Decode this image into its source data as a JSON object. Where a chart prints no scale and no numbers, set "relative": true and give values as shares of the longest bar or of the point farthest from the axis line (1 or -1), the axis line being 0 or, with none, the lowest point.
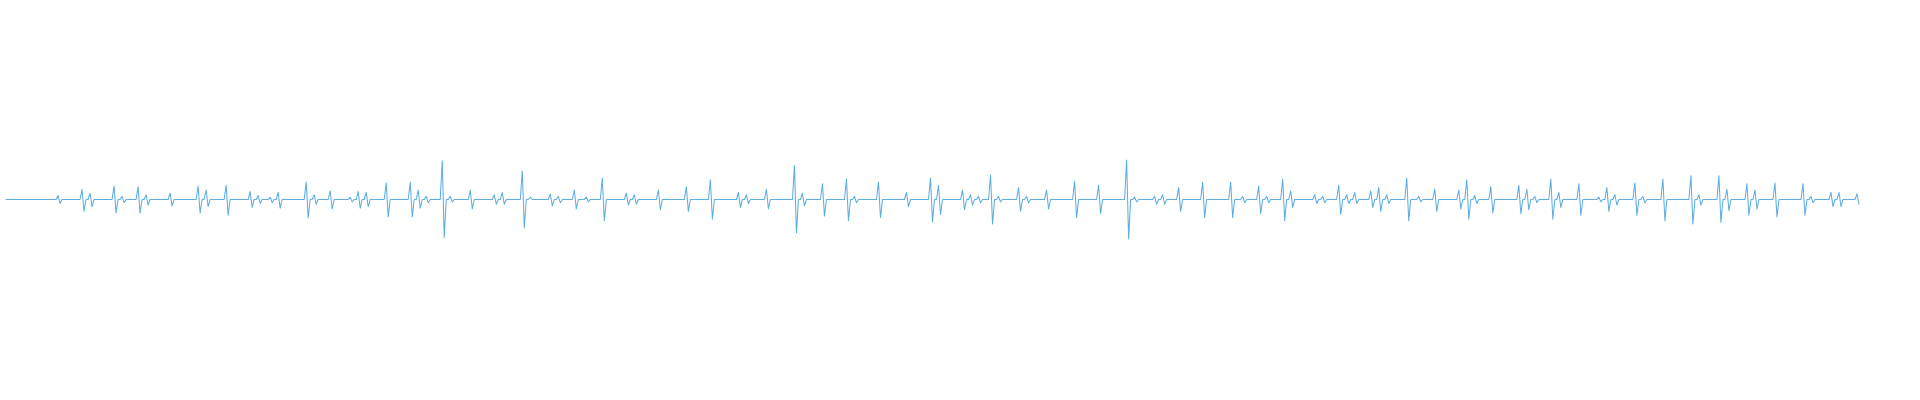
{
  "chart_data": {
    "type": "line",
    "relative": true,
    "categories": [
      null,
      null,
      null,
      null,
      null,
      null,
      null,
      null,
      null,
      null,
      null,
      null,
      null,
      null,
      null,
      null,
      null,
      null,
      null,
      null,
      null,
      null,
      null,
      null,
      null,
      null,
      null,
      null,
      null,
      null,
      null,
      null,
      null,
      null,
      null,
      null,
      null,
      null,
      null,
      null,
      null,
      null,
      null,
      null,
      null,
      null,
      null,
      null,
      null,
      null,
      null,
      null,
      null,
      null,
      null,
      null,
      null,
      null,
      null,
      null,
      null,
      null,
      null,
      null,
      null,
      null,
      null,
      null,
      null,
      null,
      null,
      null,
      null,
      null,
      null,
      null,
      null,
      null,
      null,
      null,
      null,
      null,
      null,
      null,
      null,
      null,
      null,
      null,
      null,
      null,
      null,
      null,
      null,
      null,
      null,
      null,
      null,
      null,
      null,
      null,
      null,
      null,
      null,
      null,
      null,
      null,
      null,
      null,
      null,
      null,
      null,
      null,
      null,
      null,
      null,
      null,
      null,
      null,
      null,
      null,
      null,
      null,
      null,
      null,
      null,
      null,
      null,
      null,
      null,
      null,
      null,
      null,
      null,
      null,
      null,
      null,
      null,
      null,
      null,
      null,
      null,
      null,
      null,
      null,
      null,
      null,
      null,
      null,
      null,
      null,
      null,
      null,
      null,
      null,
      null,
      null,
      null,
      null,
      null,
      null,
      null,
      null,
      null,
      null,
      null,
      null,
      null,
      null,
      null,
      null,
      null,
      null,
      null,
      null,
      null,
      null,
      null,
      null,
      null,
      null,
      null,
      null,
      null,
      null,
      null,
      null,
      null,
      null,
      null,
      null,
      null,
      null,
      null,
      null,
      null,
      null,
      null,
      null,
      null,
      null,
      null,
      null,
      null,
      null,
      null,
      null,
      null,
      null,
      null,
      null,
      null,
      null,
      null,
      null,
      null,
      null,
      null,
      null,
      null,
      null,
      null,
      null,
      null,
      null,
      null,
      null,
      null,
      null,
      null,
      null,
      null,
      null,
      null,
      null,
      null,
      null,
      null,
      null,
      null,
      null,
      null,
      null,
      null,
      null,
      null,
      null,
      null,
      null,
      null,
      null,
      null,
      null,
      null,
      null,
      null,
      null,
      null,
      null,
      null,
      null,
      null,
      null,
      null,
      null,
      null,
      null,
      null,
      null,
      null,
      null,
      null,
      null,
      null,
      null,
      null,
      null,
      null,
      null,
      null,
      null,
      null,
      null,
      null,
      null,
      null,
      null,
      null,
      null,
      null,
      null,
      null,
      null,
      null,
      null,
      null,
      null,
      null,
      null,
      null,
      null,
      null,
      null,
      null,
      null,
      null,
      null,
      null,
      null,
      null,
      null,
      null,
      null,
      null,
      null,
      null,
      null,
      null,
      null,
      null,
      null,
      null,
      null,
      null,
      null,
      null,
      null,
      null,
      null,
      null,
      null,
      null,
      null,
      null,
      null,
      null,
      null,
      null,
      null,
      null,
      null,
      null,
      null,
      null,
      null,
      null,
      null,
      null,
      null,
      null,
      null,
      null,
      null,
      null,
      null,
      null,
      null,
      null,
      null,
      null,
      null,
      null,
      null,
      null,
      null,
      null,
      null,
      null,
      null,
      null,
      null,
      null,
      null,
      null,
      null,
      null,
      null,
      null,
      null,
      null,
      null,
      null,
      null,
      null,
      null,
      null,
      null,
      null,
      null,
      null,
      null,
      null,
      null,
      null,
      null,
      null,
      null,
      null,
      null,
      null,
      null,
      null,
      null,
      null,
      null,
      null,
      null,
      null,
      null,
      null,
      null,
      null,
      null,
      null,
      null,
      null,
      null,
      null,
      null,
      null,
      null,
      null,
      null,
      null,
      null,
      null,
      null,
      null,
      null,
      null,
      null,
      null,
      null,
      null,
      null,
      null,
      null,
      null,
      null,
      null,
      null,
      null,
      null,
      null,
      null,
      null,
      null,
      null,
      null,
      null,
      null,
      null,
      null,
      null,
      null,
      null,
      null,
      null,
      null,
      null,
      null,
      null,
      null,
      null,
      null,
      null,
      null,
      null,
      null,
      null,
      null,
      null,
      null,
      null,
      null,
      null,
      null,
      null,
      null,
      null,
      null,
      null,
      null,
      null,
      null,
      null,
      null,
      null,
      null,
      null,
      null,
      null,
      null,
      null,
      null,
      null,
      null,
      null,
      null,
      null,
      null,
      null,
      null,
      null,
      null,
      null,
      null,
      null,
      null,
      null,
      null,
      null,
      null,
      null,
      null,
      null,
      null,
      null,
      null,
      null,
      null,
      null,
      null,
      null,
      null,
      null,
      null,
      null,
      null,
      null,
      null,
      null,
      null,
      null,
      null,
      null,
      null,
      null,
      null,
      null,
      null,
      null,
      null,
      null,
      null,
      null,
      null,
      null,
      null,
      null,
      null,
      null,
      null,
      null,
      null,
      null,
      null,
      null,
      null,
      null,
      null,
      null,
      null,
      null,
      null,
      null,
      null,
      null,
      null,
      null,
      null,
      null,
      null,
      null,
      null,
      null,
      null,
      null,
      null,
      null,
      null,
      null,
      null,
      null,
      null,
      null,
      null,
      null,
      null,
      null,
      null,
      null,
      null,
      null,
      null,
      null,
      null,
      null,
      null,
      null,
      null,
      null,
      null,
      null,
      null,
      null,
      null,
      null,
      null,
      null,
      null,
      null,
      null,
      null,
      null,
      null,
      null,
      null,
      null,
      null,
      null,
      null,
      null,
      null,
      null,
      null,
      null,
      null,
      null,
      null,
      null,
      null,
      null,
      null,
      null,
      null,
      null,
      null,
      null,
      null,
      null,
      null,
      null,
      null,
      null,
      null,
      null,
      null,
      null,
      null,
      null,
      null,
      null,
      null,
      null,
      null,
      null,
      null,
      null,
      null,
      null,
      null,
      null,
      null,
      null,
      null,
      null,
      null,
      null,
      null,
      null,
      null,
      null,
      null,
      null,
      null,
      null,
      null,
      null,
      null,
      null,
      null,
      null,
      null,
      null,
      null,
      null,
      null,
      null,
      null,
      null,
      null,
      null,
      null,
      null,
      null,
      null,
      null,
      null,
      null,
      null,
      null,
      null,
      null,
      null,
      null,
      null,
      null,
      null,
      null,
      null,
      null,
      null,
      null,
      null,
      null,
      null,
      null,
      null,
      null,
      null,
      null,
      null,
      null,
      null,
      null,
      null,
      null,
      null,
      null,
      null,
      null,
      null,
      null,
      null,
      null,
      null,
      null,
      null,
      null,
      null,
      null,
      null,
      null,
      null,
      null,
      null,
      null,
      null,
      null,
      null,
      null,
      null,
      null,
      null,
      null,
      null,
      null,
      null,
      null,
      null,
      null,
      null,
      null,
      null,
      null,
      null,
      null,
      null,
      null,
      null,
      null,
      null,
      null,
      null,
      null,
      null,
      null,
      null,
      null,
      null,
      null,
      null,
      null,
      null,
      null,
      null,
      null,
      null,
      null,
      null,
      null,
      null,
      null,
      null,
      null,
      null,
      null,
      null,
      null,
      null,
      null,
      null,
      null,
      null,
      null,
      null,
      null,
      null,
      null,
      null,
      null,
      null,
      null,
      null,
      null,
      null,
      null,
      null,
      null,
      null,
      null,
      null,
      null,
      null,
      null,
      null,
      null,
      null,
      null,
      null,
      null,
      null,
      null,
      null,
      null,
      null,
      null,
      null,
      null,
      null,
      null,
      null,
      null,
      null,
      null,
      null,
      null,
      null,
      null,
      null,
      null,
      null,
      null,
      null,
      null,
      null,
      null,
      null,
      null,
      null,
      null,
      null,
      null,
      null,
      null,
      null,
      null,
      null,
      null,
      null,
      null,
      null,
      null,
      null,
      null,
      null,
      null,
      null,
      null,
      null,
      null,
      null,
      null,
      null,
      null,
      null,
      null,
      null,
      null,
      null,
      null,
      null,
      null,
      null,
      null,
      null,
      null,
      null,
      null,
      null,
      null,
      null,
      null,
      null,
      null,
      null,
      null,
      null,
      null,
      null,
      null,
      null,
      null,
      null,
      null,
      null,
      null,
      null,
      null,
      null,
      null,
      null,
      null,
      null,
      null,
      null,
      null
    ],
    "series": [
      {
        "color": "#5dade2",
        "values": [
          0.5,
          0.5,
          0.5,
          0.5,
          0.5,
          0.5,
          0.5,
          0.5,
          0.5,
          0.5,
          0.5,
          0.5,
          0.5,
          0.5,
          0.5,
          0.5,
          0.5,
          0.5,
          0.5,
          0.5,
          0.5,
          0.5,
          0.5,
          0.5,
          0.5,
          0.5,
          0.55,
          0.45,
          0.5,
          0.5,
          0.5,
          0.5,
          0.5,
          0.5,
          0.5,
          0.5,
          0.5,
          0.5,
          0.63,
          0.35,
          0.5,
          0.5,
          0.58,
          0.41,
          0.5,
          0.5,
          0.5,
          0.5,
          0.5,
          0.5,
          0.5,
          0.5,
          0.5,
          0.5,
          0.67,
          0.33,
          0.5,
          0.5,
          0.54,
          0.46,
          0.5,
          0.5,
          0.5,
          0.5,
          0.5,
          0.5,
          0.66,
          0.33,
          0.5,
          0.5,
          0.56,
          0.43,
          0.5,
          0.5,
          0.5,
          0.5,
          0.5,
          0.5,
          0.5,
          0.5,
          0.5,
          0.5,
          0.58,
          0.42,
          0.5,
          0.5,
          0.5,
          0.5,
          0.5,
          0.5,
          0.5,
          0.5,
          0.5,
          0.5,
          0.5,
          0.5,
          0.67,
          0.33,
          0.5,
          0.5,
          0.62,
          0.41,
          0.5,
          0.5,
          0.5,
          0.5,
          0.5,
          0.5,
          0.5,
          0.5,
          0.68,
          0.3,
          0.5,
          0.5,
          0.5,
          0.5,
          0.5,
          0.5,
          0.5,
          0.5,
          0.5,
          0.5,
          0.6,
          0.4,
          0.5,
          0.5,
          0.55,
          0.45,
          0.5,
          0.5,
          0.5,
          0.5,
          0.53,
          0.46,
          0.5,
          0.5,
          0.59,
          0.39,
          0.5,
          0.5,
          0.5,
          0.5,
          0.5,
          0.5,
          0.5,
          0.5,
          0.5,
          0.5,
          0.5,
          0.5,
          0.72,
          0.27,
          0.5,
          0.5,
          0.56,
          0.44,
          0.5,
          0.5,
          0.5,
          0.5,
          0.5,
          0.5,
          0.61,
          0.38,
          0.5,
          0.5,
          0.5,
          0.5,
          0.5,
          0.5,
          0.5,
          0.5,
          0.53,
          0.47,
          0.5,
          0.5,
          0.6,
          0.39,
          0.5,
          0.5,
          0.59,
          0.41,
          0.5,
          0.5,
          0.5,
          0.5,
          0.5,
          0.5,
          0.5,
          0.5,
          0.71,
          0.28,
          0.5,
          0.5,
          0.5,
          0.5,
          0.5,
          0.5,
          0.5,
          0.5,
          0.5,
          0.5,
          0.72,
          0.28,
          0.5,
          0.5,
          0.62,
          0.39,
          0.5,
          0.5,
          0.54,
          0.46,
          0.5,
          0.5,
          0.5,
          0.5,
          0.5,
          0.5,
          0.99,
          0.02,
          0.5,
          0.5,
          0.54,
          0.47,
          0.5,
          0.5,
          0.5,
          0.5,
          0.5,
          0.5,
          0.5,
          0.5,
          0.62,
          0.38,
          0.5,
          0.5,
          0.5,
          0.5,
          0.5,
          0.5,
          0.5,
          0.5,
          0.5,
          0.5,
          0.56,
          0.44,
          0.5,
          0.5,
          0.59,
          0.44,
          0.5,
          0.5,
          0.5,
          0.5,
          0.5,
          0.5,
          0.5,
          0.5,
          0.86,
          0.14,
          0.5,
          0.5,
          0.53,
          0.5,
          0.5,
          0.5,
          0.5,
          0.5,
          0.5,
          0.5,
          0.5,
          0.5,
          0.57,
          0.42,
          0.5,
          0.5,
          0.54,
          0.46,
          0.5,
          0.5,
          0.5,
          0.5,
          0.5,
          0.5,
          0.62,
          0.38,
          0.5,
          0.5,
          0.5,
          0.5,
          0.53,
          0.47,
          0.5,
          0.5,
          0.5,
          0.5,
          0.5,
          0.5,
          0.77,
          0.23,
          0.5,
          0.5,
          0.5,
          0.5,
          0.5,
          0.5,
          0.5,
          0.5,
          0.5,
          0.5,
          0.58,
          0.43,
          0.5,
          0.5,
          0.56,
          0.44,
          0.5,
          0.5,
          0.5,
          0.5,
          0.5,
          0.5,
          0.5,
          0.5,
          0.5,
          0.5,
          0.62,
          0.37,
          0.5,
          0.5,
          0.5,
          0.5,
          0.5,
          0.5,
          0.5,
          0.5,
          0.5,
          0.5,
          0.5,
          0.5,
          0.66,
          0.35,
          0.5,
          0.5,
          0.5,
          0.5,
          0.5,
          0.5,
          0.5,
          0.5,
          0.5,
          0.5,
          0.75,
          0.25,
          0.5,
          0.5,
          0.5,
          0.5,
          0.5,
          0.5,
          0.5,
          0.5,
          0.5,
          0.5,
          0.5,
          0.5,
          0.59,
          0.4,
          0.5,
          0.5,
          0.56,
          0.45,
          0.5,
          0.5,
          0.5,
          0.5,
          0.5,
          0.5,
          0.5,
          0.5,
          0.63,
          0.38,
          0.5,
          0.5,
          0.5,
          0.5,
          0.5,
          0.5,
          0.5,
          0.5,
          0.5,
          0.5,
          0.5,
          0.5,
          0.93,
          0.08,
          0.5,
          0.5,
          0.58,
          0.42,
          0.5,
          0.5,
          0.5,
          0.5,
          0.5,
          0.5,
          0.5,
          0.5,
          0.7,
          0.29,
          0.5,
          0.5,
          0.5,
          0.5,
          0.5,
          0.5,
          0.5,
          0.5,
          0.5,
          0.5,
          0.76,
          0.23,
          0.5,
          0.5,
          0.54,
          0.46,
          0.5,
          0.5,
          0.5,
          0.5,
          0.5,
          0.5,
          0.5,
          0.5,
          0.5,
          0.5,
          0.72,
          0.27,
          0.5,
          0.5,
          0.5,
          0.5,
          0.5,
          0.5,
          0.5,
          0.5,
          0.5,
          0.5,
          0.5,
          0.5,
          0.59,
          0.41,
          0.5,
          0.5,
          0.5,
          0.5,
          0.5,
          0.5,
          0.5,
          0.5,
          0.5,
          0.5,
          0.77,
          0.22,
          0.5,
          0.5,
          0.68,
          0.31,
          0.5,
          0.5,
          0.5,
          0.5,
          0.5,
          0.5,
          0.5,
          0.5,
          0.5,
          0.5,
          0.62,
          0.37,
          0.5,
          0.5,
          0.56,
          0.43,
          0.5,
          0.5,
          0.54,
          0.46,
          0.5,
          0.5,
          0.5,
          0.5,
          0.81,
          0.19,
          0.5,
          0.5,
          0.54,
          0.47,
          0.5,
          0.5,
          0.5,
          0.5,
          0.5,
          0.5,
          0.5,
          0.5,
          0.65,
          0.35,
          0.5,
          0.5,
          0.54,
          0.46,
          0.5,
          0.5,
          0.5,
          0.5,
          0.5,
          0.5,
          0.5,
          0.5,
          0.62,
          0.38,
          0.5,
          0.5,
          0.5,
          0.5,
          0.5,
          0.5,
          0.5,
          0.5,
          0.5,
          0.5,
          0.5,
          0.5,
          0.73,
          0.27,
          0.5,
          0.5,
          0.5,
          0.5,
          0.5,
          0.5,
          0.5,
          0.5,
          0.5,
          0.5,
          0.68,
          0.32,
          0.5,
          0.5,
          0.5,
          0.5,
          0.5,
          0.5,
          0.5,
          0.5,
          0.5,
          0.5,
          0.5,
          0.5,
          1,
          0,
          0.5,
          0.5,
          0.53,
          0.47,
          0.5,
          0.5,
          0.5,
          0.5,
          0.5,
          0.5,
          0.5,
          0.5,
          0.54,
          0.44,
          0.5,
          0.5,
          0.56,
          0.44,
          0.5,
          0.5,
          0.5,
          0.5,
          0.5,
          0.5,
          0.65,
          0.35,
          0.5,
          0.5,
          0.5,
          0.5,
          0.5,
          0.5,
          0.5,
          0.5,
          0.5,
          0.5,
          0.72,
          0.27,
          0.5,
          0.5,
          0.5,
          0.5,
          0.5,
          0.5,
          0.5,
          0.5,
          0.5,
          0.5,
          0.5,
          0.5,
          0.72,
          0.27,
          0.5,
          0.5,
          0.5,
          0.5,
          0.54,
          0.46,
          0.5,
          0.5,
          0.5,
          0.5,
          0.5,
          0.5,
          0.67,
          0.32,
          0.5,
          0.5,
          0.54,
          0.46,
          0.5,
          0.5,
          0.5,
          0.5,
          0.5,
          0.5,
          0.76,
          0.23,
          0.5,
          0.5,
          0.61,
          0.4,
          0.5,
          0.5,
          0.5,
          0.5,
          0.5,
          0.5,
          0.5,
          0.5,
          0.5,
          0.5,
          0.56,
          0.45,
          0.5,
          0.5,
          0.54,
          0.46,
          0.5,
          0.5,
          0.5,
          0.5,
          0.5,
          0.5,
          0.68,
          0.31,
          0.5,
          0.5,
          0.56,
          0.45,
          0.5,
          0.5,
          0.59,
          0.45,
          0.5,
          0.5,
          0.5,
          0.5,
          0.5,
          0.5,
          0.61,
          0.4,
          0.5,
          0.5,
          0.65,
          0.35,
          0.5,
          0.5,
          0.56,
          0.45,
          0.5,
          0.5,
          0.5,
          0.5,
          0.5,
          0.5,
          0.5,
          0.5,
          0.77,
          0.23,
          0.5,
          0.5,
          0.5,
          0.5,
          0.54,
          0.47,
          0.5,
          0.5,
          0.5,
          0.5,
          0.5,
          0.5,
          0.63,
          0.35,
          0.5,
          0.5,
          0.5,
          0.5,
          0.5,
          0.5,
          0.5,
          0.5,
          0.5,
          0.5,
          0.62,
          0.38,
          0.5,
          0.5,
          0.75,
          0.25,
          0.5,
          0.5,
          0.55,
          0.45,
          0.5,
          0.5,
          0.5,
          0.5,
          0.5,
          0.5,
          0.66,
          0.33,
          0.5,
          0.5,
          0.5,
          0.5,
          0.5,
          0.5,
          0.5,
          0.5,
          0.5,
          0.5,
          0.5,
          0.5,
          0.68,
          0.32,
          0.5,
          0.5,
          0.63,
          0.37,
          0.5,
          0.5,
          0.54,
          0.46,
          0.5,
          0.5,
          0.5,
          0.5,
          0.5,
          0.5,
          0.76,
          0.25,
          0.5,
          0.5,
          0.59,
          0.4,
          0.5,
          0.5,
          0.5,
          0.5,
          0.5,
          0.5,
          0.5,
          0.5,
          0.7,
          0.3,
          0.5,
          0.5,
          0.5,
          0.5,
          0.5,
          0.5,
          0.5,
          0.5,
          0.53,
          0.47,
          0.5,
          0.5,
          0.65,
          0.35,
          0.5,
          0.5,
          0.56,
          0.43,
          0.5,
          0.5,
          0.5,
          0.5,
          0.5,
          0.5,
          0.5,
          0.5,
          0.71,
          0.3,
          0.5,
          0.5,
          0.54,
          0.46,
          0.5,
          0.5,
          0.5,
          0.5,
          0.5,
          0.5,
          0.5,
          0.5,
          0.76,
          0.23,
          0.5,
          0.5,
          0.5,
          0.5,
          0.5,
          0.5,
          0.5,
          0.5,
          0.5,
          0.5,
          0.5,
          0.5,
          0.8,
          0.19,
          0.5,
          0.5,
          0.56,
          0.43,
          0.5,
          0.5,
          0.5,
          0.5,
          0.5,
          0.5,
          0.5,
          0.5,
          0.8,
          0.21,
          0.5,
          0.5,
          0.63,
          0.36,
          0.5,
          0.5,
          0.5,
          0.5,
          0.5,
          0.5,
          0.5,
          0.5,
          0.7,
          0.3,
          0.5,
          0.5,
          0.62,
          0.38,
          0.5,
          0.5,
          0.5,
          0.5,
          0.5,
          0.5,
          0.5,
          0.5,
          0.71,
          0.28,
          0.5,
          0.5,
          0.5,
          0.5,
          0.5,
          0.5,
          0.5,
          0.5,
          0.5,
          0.5,
          0.5,
          0.5,
          0.7,
          0.3,
          0.5,
          0.5,
          0.54,
          0.46,
          0.5,
          0.5,
          0.5,
          0.5,
          0.5,
          0.5,
          0.5,
          0.5,
          0.59,
          0.41,
          0.5,
          0.5,
          0.59,
          0.41,
          0.5,
          0.5,
          0.5,
          0.5,
          0.5,
          0.5,
          0.5,
          0.57,
          0.44
        ]
      }
    ]
  }
}
